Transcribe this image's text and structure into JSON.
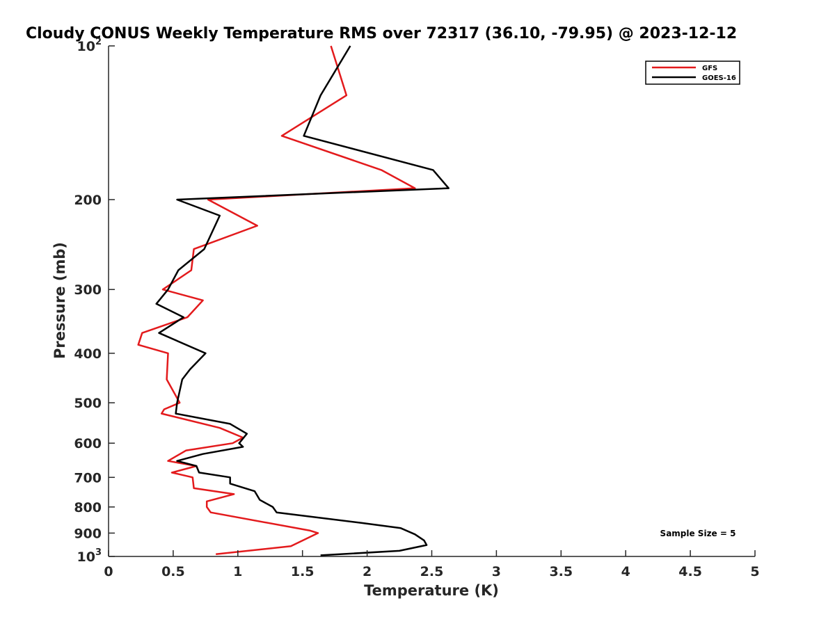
{
  "chart_data": {
    "type": "line",
    "title": "Cloudy CONUS Weekly Temperature RMS over 72317 (36.10, -79.95) @ 2023-12-12",
    "xlabel": "Temperature (K)",
    "ylabel": "Pressure (mb)",
    "xlim": [
      0,
      5
    ],
    "ylim": [
      100,
      1000
    ],
    "y_scale": "log",
    "y_reversed": true,
    "x_ticks": [
      "0",
      "0.5",
      "1",
      "1.5",
      "2",
      "2.5",
      "3",
      "3.5",
      "4",
      "4.5",
      "5"
    ],
    "y_ticks": [
      {
        "value": 100,
        "base": "10",
        "exp": "2"
      },
      {
        "value": 200,
        "label": "200"
      },
      {
        "value": 300,
        "label": "300"
      },
      {
        "value": 400,
        "label": "400"
      },
      {
        "value": 500,
        "label": "500"
      },
      {
        "value": 600,
        "label": "600"
      },
      {
        "value": 700,
        "label": "700"
      },
      {
        "value": 800,
        "label": "800"
      },
      {
        "value": 900,
        "label": "900"
      },
      {
        "value": 1000,
        "base": "10",
        "exp": "3"
      }
    ],
    "grid": false,
    "legend_position": "top-right",
    "series": [
      {
        "name": "GFS",
        "color": "#e31a1c",
        "points": [
          [
            1.72,
            100
          ],
          [
            1.84,
            125
          ],
          [
            1.34,
            150
          ],
          [
            2.11,
            175
          ],
          [
            2.37,
            190
          ],
          [
            0.77,
            200
          ],
          [
            1.15,
            225
          ],
          [
            0.66,
            250
          ],
          [
            0.64,
            275
          ],
          [
            0.42,
            300
          ],
          [
            0.73,
            315
          ],
          [
            0.61,
            340
          ],
          [
            0.26,
            365
          ],
          [
            0.23,
            385
          ],
          [
            0.46,
            400
          ],
          [
            0.45,
            450
          ],
          [
            0.55,
            500
          ],
          [
            0.43,
            515
          ],
          [
            0.41,
            525
          ],
          [
            0.86,
            560
          ],
          [
            1.04,
            585
          ],
          [
            0.96,
            600
          ],
          [
            0.6,
            620
          ],
          [
            0.46,
            650
          ],
          [
            0.68,
            665
          ],
          [
            0.49,
            685
          ],
          [
            0.65,
            700
          ],
          [
            0.66,
            735
          ],
          [
            0.97,
            755
          ],
          [
            0.76,
            780
          ],
          [
            0.76,
            800
          ],
          [
            0.79,
            820
          ],
          [
            1.56,
            890
          ],
          [
            1.62,
            900
          ],
          [
            1.41,
            955
          ],
          [
            0.83,
            990
          ]
        ]
      },
      {
        "name": "GOES-16",
        "color": "#000000",
        "points": [
          [
            1.87,
            100
          ],
          [
            1.64,
            125
          ],
          [
            1.51,
            150
          ],
          [
            2.51,
            175
          ],
          [
            2.63,
            190
          ],
          [
            0.53,
            200
          ],
          [
            0.86,
            215
          ],
          [
            0.74,
            250
          ],
          [
            0.54,
            275
          ],
          [
            0.46,
            300
          ],
          [
            0.37,
            320
          ],
          [
            0.58,
            340
          ],
          [
            0.39,
            365
          ],
          [
            0.75,
            400
          ],
          [
            0.63,
            430
          ],
          [
            0.57,
            450
          ],
          [
            0.53,
            500
          ],
          [
            0.52,
            525
          ],
          [
            0.94,
            550
          ],
          [
            1.07,
            575
          ],
          [
            1.01,
            600
          ],
          [
            1.04,
            610
          ],
          [
            0.73,
            630
          ],
          [
            0.53,
            650
          ],
          [
            0.68,
            665
          ],
          [
            0.7,
            685
          ],
          [
            0.94,
            700
          ],
          [
            0.94,
            720
          ],
          [
            1.13,
            745
          ],
          [
            1.17,
            775
          ],
          [
            1.27,
            800
          ],
          [
            1.3,
            820
          ],
          [
            1.96,
            860
          ],
          [
            2.26,
            880
          ],
          [
            2.37,
            905
          ],
          [
            2.44,
            930
          ],
          [
            2.46,
            950
          ],
          [
            2.25,
            975
          ],
          [
            1.64,
            995
          ]
        ]
      }
    ],
    "annotation": "Sample Size = 5"
  }
}
